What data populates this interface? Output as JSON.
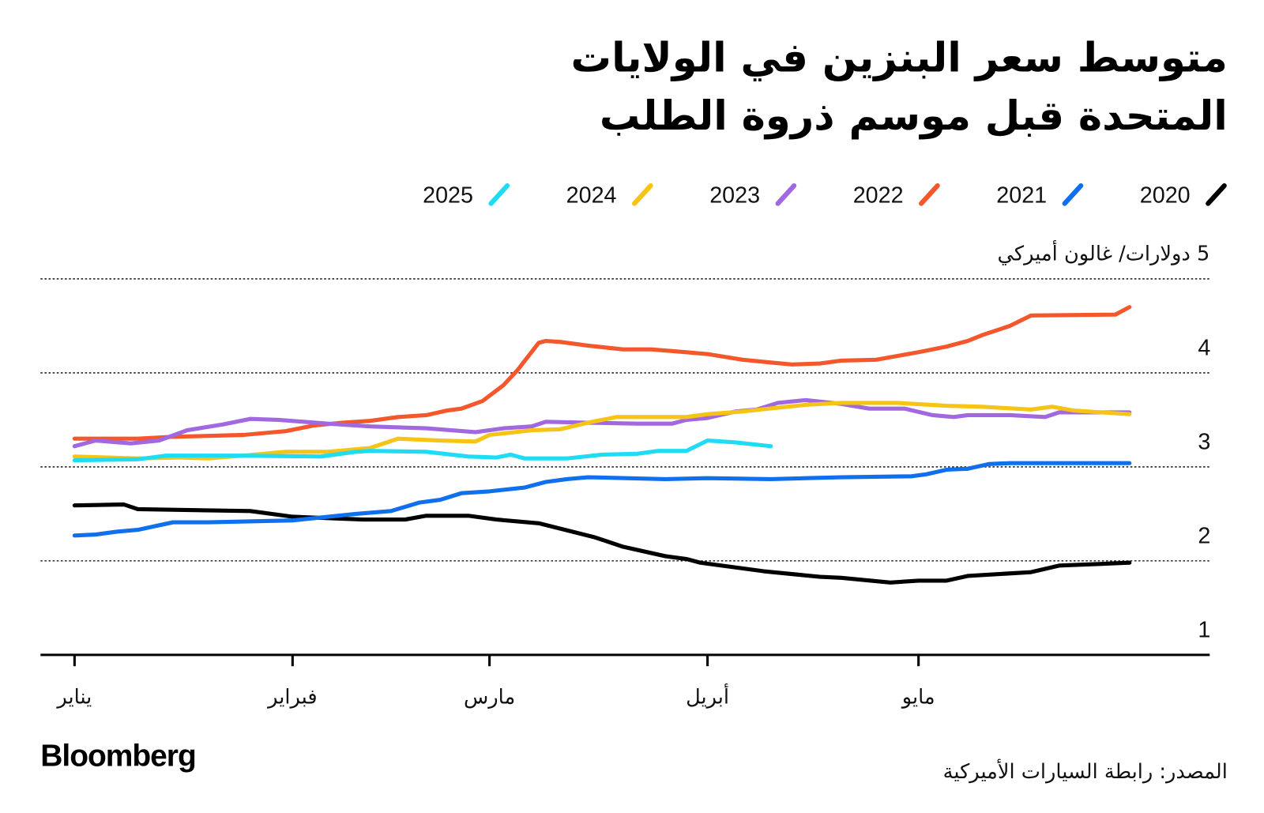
{
  "title_lines": [
    "متوسط سعر البنزين في الولايات",
    "المتحدة قبل موسم ذروة الطلب"
  ],
  "logo": "Bloomberg",
  "source": "المصدر: رابطة السيارات الأميركية",
  "chart_data": {
    "type": "line",
    "title": "متوسط سعر البنزين في الولايات المتحدة قبل موسم ذروة الطلب",
    "ylabel": "5 دولارات/ غالون أميركي",
    "ylim": [
      1,
      5
    ],
    "yticks": [
      1,
      2,
      3,
      4,
      5
    ],
    "ytick_labels": [
      "1",
      "2",
      "3",
      "4"
    ],
    "xlim": [
      "01-01",
      "05-31"
    ],
    "xticks": [
      "01-01",
      "02-01",
      "03-01",
      "04-01",
      "05-01"
    ],
    "xtick_labels": [
      "يناير",
      "فبراير",
      "مارس",
      "أبريل",
      "مايو"
    ],
    "grid": "horizontal dotted",
    "legend_position": "top",
    "series": [
      {
        "name": "2020",
        "color": "#000000",
        "points": [
          [
            "01-01",
            2.59
          ],
          [
            "01-08",
            2.6
          ],
          [
            "01-10",
            2.55
          ],
          [
            "01-26",
            2.53
          ],
          [
            "02-01",
            2.47
          ],
          [
            "02-11",
            2.44
          ],
          [
            "02-17",
            2.44
          ],
          [
            "02-20",
            2.48
          ],
          [
            "02-26",
            2.48
          ],
          [
            "03-02",
            2.44
          ],
          [
            "03-08",
            2.4
          ],
          [
            "03-16",
            2.25
          ],
          [
            "03-20",
            2.15
          ],
          [
            "03-26",
            2.05
          ],
          [
            "03-29",
            2.02
          ],
          [
            "03-31",
            1.98
          ],
          [
            "04-09",
            1.89
          ],
          [
            "04-17",
            1.83
          ],
          [
            "04-20",
            1.82
          ],
          [
            "04-27",
            1.77
          ],
          [
            "05-01",
            1.79
          ],
          [
            "05-05",
            1.79
          ],
          [
            "05-08",
            1.84
          ],
          [
            "05-17",
            1.88
          ],
          [
            "05-21",
            1.95
          ],
          [
            "05-31",
            1.98
          ]
        ]
      },
      {
        "name": "2021",
        "color": "#0f6fec",
        "points": [
          [
            "01-01",
            2.27
          ],
          [
            "01-04",
            2.28
          ],
          [
            "01-07",
            2.31
          ],
          [
            "01-10",
            2.33
          ],
          [
            "01-15",
            2.41
          ],
          [
            "01-20",
            2.41
          ],
          [
            "02-01",
            2.43
          ],
          [
            "02-10",
            2.5
          ],
          [
            "02-15",
            2.53
          ],
          [
            "02-19",
            2.62
          ],
          [
            "02-22",
            2.65
          ],
          [
            "02-25",
            2.72
          ],
          [
            "03-01",
            2.74
          ],
          [
            "03-06",
            2.78
          ],
          [
            "03-09",
            2.84
          ],
          [
            "03-12",
            2.87
          ],
          [
            "03-15",
            2.89
          ],
          [
            "03-26",
            2.87
          ],
          [
            "04-01",
            2.88
          ],
          [
            "04-10",
            2.87
          ],
          [
            "04-20",
            2.89
          ],
          [
            "04-30",
            2.9
          ],
          [
            "05-02",
            2.92
          ],
          [
            "05-05",
            2.97
          ],
          [
            "05-08",
            2.98
          ],
          [
            "05-11",
            3.03
          ],
          [
            "05-14",
            3.04
          ],
          [
            "05-31",
            3.04
          ]
        ]
      },
      {
        "name": "2022",
        "color": "#f4572c",
        "points": [
          [
            "01-01",
            3.3
          ],
          [
            "01-10",
            3.3
          ],
          [
            "01-15",
            3.32
          ],
          [
            "01-25",
            3.34
          ],
          [
            "01-31",
            3.38
          ],
          [
            "02-04",
            3.44
          ],
          [
            "02-08",
            3.47
          ],
          [
            "02-12",
            3.49
          ],
          [
            "02-16",
            3.53
          ],
          [
            "02-20",
            3.55
          ],
          [
            "02-23",
            3.6
          ],
          [
            "02-25",
            3.62
          ],
          [
            "02-28",
            3.7
          ],
          [
            "03-03",
            3.87
          ],
          [
            "03-05",
            4.03
          ],
          [
            "03-08",
            4.32
          ],
          [
            "03-09",
            4.34
          ],
          [
            "03-11",
            4.33
          ],
          [
            "03-15",
            4.29
          ],
          [
            "03-20",
            4.25
          ],
          [
            "03-24",
            4.25
          ],
          [
            "03-29",
            4.22
          ],
          [
            "04-01",
            4.2
          ],
          [
            "04-06",
            4.14
          ],
          [
            "04-10",
            4.11
          ],
          [
            "04-13",
            4.09
          ],
          [
            "04-17",
            4.1
          ],
          [
            "04-20",
            4.13
          ],
          [
            "04-25",
            4.14
          ],
          [
            "04-28",
            4.18
          ],
          [
            "05-01",
            4.22
          ],
          [
            "05-05",
            4.28
          ],
          [
            "05-08",
            4.34
          ],
          [
            "05-10",
            4.4
          ],
          [
            "05-14",
            4.5
          ],
          [
            "05-17",
            4.61
          ],
          [
            "05-29",
            4.62
          ],
          [
            "05-31",
            4.7
          ]
        ]
      },
      {
        "name": "2023",
        "color": "#a268e0",
        "points": [
          [
            "01-01",
            3.22
          ],
          [
            "01-04",
            3.28
          ],
          [
            "01-09",
            3.25
          ],
          [
            "01-13",
            3.28
          ],
          [
            "01-17",
            3.39
          ],
          [
            "01-22",
            3.45
          ],
          [
            "01-26",
            3.51
          ],
          [
            "01-30",
            3.5
          ],
          [
            "02-06",
            3.46
          ],
          [
            "02-12",
            3.43
          ],
          [
            "02-20",
            3.41
          ],
          [
            "02-27",
            3.37
          ],
          [
            "03-03",
            3.41
          ],
          [
            "03-07",
            3.43
          ],
          [
            "03-09",
            3.48
          ],
          [
            "03-15",
            3.47
          ],
          [
            "03-22",
            3.46
          ],
          [
            "03-27",
            3.46
          ],
          [
            "03-29",
            3.5
          ],
          [
            "04-01",
            3.52
          ],
          [
            "04-05",
            3.59
          ],
          [
            "04-08",
            3.61
          ],
          [
            "04-11",
            3.68
          ],
          [
            "04-15",
            3.71
          ],
          [
            "04-20",
            3.67
          ],
          [
            "04-24",
            3.62
          ],
          [
            "04-29",
            3.62
          ],
          [
            "05-03",
            3.55
          ],
          [
            "05-06",
            3.53
          ],
          [
            "05-08",
            3.55
          ],
          [
            "05-14",
            3.55
          ],
          [
            "05-19",
            3.53
          ],
          [
            "05-21",
            3.58
          ],
          [
            "05-31",
            3.58
          ]
        ]
      },
      {
        "name": "2024",
        "color": "#f6c414",
        "points": [
          [
            "01-01",
            3.11
          ],
          [
            "01-10",
            3.09
          ],
          [
            "01-16",
            3.1
          ],
          [
            "01-20",
            3.09
          ],
          [
            "01-25",
            3.12
          ],
          [
            "01-31",
            3.16
          ],
          [
            "02-06",
            3.16
          ],
          [
            "02-12",
            3.2
          ],
          [
            "02-16",
            3.3
          ],
          [
            "02-22",
            3.28
          ],
          [
            "02-27",
            3.27
          ],
          [
            "03-01",
            3.34
          ],
          [
            "03-07",
            3.39
          ],
          [
            "03-11",
            3.4
          ],
          [
            "03-15",
            3.47
          ],
          [
            "03-19",
            3.53
          ],
          [
            "03-29",
            3.53
          ],
          [
            "04-01",
            3.56
          ],
          [
            "04-06",
            3.59
          ],
          [
            "04-15",
            3.66
          ],
          [
            "04-20",
            3.68
          ],
          [
            "04-28",
            3.68
          ],
          [
            "05-05",
            3.65
          ],
          [
            "05-10",
            3.64
          ],
          [
            "05-17",
            3.61
          ],
          [
            "05-20",
            3.64
          ],
          [
            "05-23",
            3.6
          ],
          [
            "05-31",
            3.56
          ]
        ]
      },
      {
        "name": "2025",
        "color": "#1fdcf5",
        "points": [
          [
            "01-01",
            3.07
          ],
          [
            "01-10",
            3.08
          ],
          [
            "01-14",
            3.12
          ],
          [
            "01-25",
            3.12
          ],
          [
            "02-05",
            3.11
          ],
          [
            "02-10",
            3.16
          ],
          [
            "02-12",
            3.17
          ],
          [
            "02-20",
            3.16
          ],
          [
            "02-26",
            3.11
          ],
          [
            "03-02",
            3.1
          ],
          [
            "03-04",
            3.13
          ],
          [
            "03-06",
            3.09
          ],
          [
            "03-12",
            3.09
          ],
          [
            "03-17",
            3.13
          ],
          [
            "03-22",
            3.14
          ],
          [
            "03-25",
            3.17
          ],
          [
            "03-29",
            3.17
          ],
          [
            "04-01",
            3.28
          ],
          [
            "04-05",
            3.26
          ],
          [
            "04-10",
            3.22
          ]
        ]
      }
    ]
  }
}
